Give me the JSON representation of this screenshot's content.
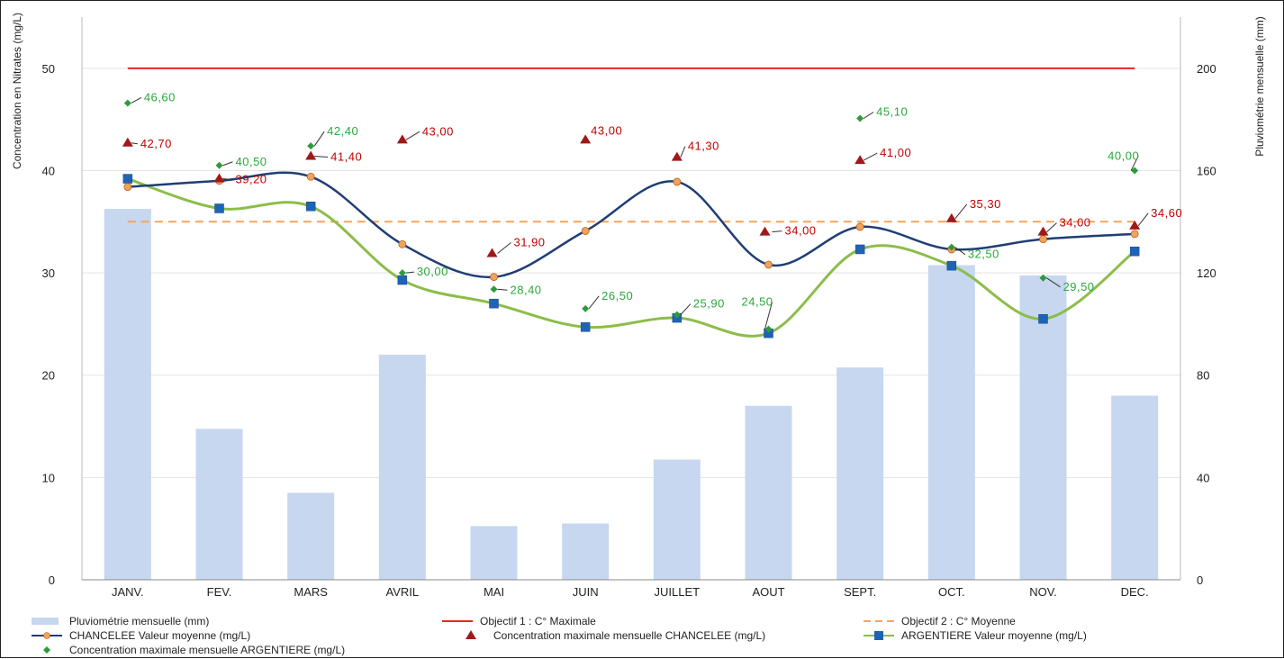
{
  "chart_data": {
    "type": "bar",
    "categories": [
      "JANV.",
      "FEV.",
      "MARS",
      "AVRIL",
      "MAI",
      "JUIN",
      "JUILLET",
      "AOUT",
      "SEPT.",
      "OCT.",
      "NOV.",
      "DEC."
    ],
    "ylabel": "Concentration en Nitrates (mg/L)",
    "y2label": "Pluviométrie mensuelle (mm)",
    "ylim": [
      0,
      55
    ],
    "y2lim": [
      0,
      220
    ],
    "yticks": [
      0,
      10,
      20,
      30,
      40,
      50
    ],
    "y2ticks": [
      0,
      40,
      80,
      120,
      160,
      200
    ],
    "grid": true,
    "legend_position": "bottom",
    "series": [
      {
        "key": "rain",
        "name": "Pluviométrie mensuelle (mm)",
        "kind": "bar",
        "axis": "right",
        "color": "#c6d7ef",
        "values": [
          145,
          59,
          34,
          88,
          21,
          22,
          47,
          68,
          83,
          123,
          119,
          72
        ]
      },
      {
        "key": "obj1",
        "name": "Objectif 1 : C° Maximale",
        "kind": "line",
        "axis": "left",
        "color": "#e8261f",
        "values": [
          50,
          50,
          50,
          50,
          50,
          50,
          50,
          50,
          50,
          50,
          50,
          50
        ]
      },
      {
        "key": "obj2",
        "name": "Objectif 2 : C° Moyenne",
        "kind": "dashed-line",
        "axis": "left",
        "color": "#f4a460",
        "values": [
          35,
          35,
          35,
          35,
          35,
          35,
          35,
          35,
          35,
          35,
          35,
          35
        ]
      },
      {
        "key": "chanc_mean",
        "name": "CHANCELEE Valeur moyenne (mg/L)",
        "kind": "smooth-line",
        "axis": "left",
        "color": "#1f3e74",
        "marker_color": "#f2a25c",
        "values": [
          38.4,
          39.0,
          39.4,
          32.8,
          29.6,
          34.1,
          38.9,
          30.8,
          34.5,
          32.3,
          33.3,
          33.8
        ]
      },
      {
        "key": "chanc_max",
        "name": "Concentration maximale mensuelle CHANCELEE (mg/L)",
        "kind": "scatter",
        "axis": "left",
        "color": "#a01818",
        "values": [
          42.7,
          39.2,
          41.4,
          43.0,
          31.9,
          43.0,
          41.3,
          34.0,
          41.0,
          35.3,
          34.0,
          34.6
        ],
        "labels": [
          "42,70",
          "39,20",
          "41,40",
          "43,00",
          "31,90",
          "43,00",
          "41,30",
          "34,00",
          "41,00",
          "35,30",
          "34,00",
          "34,60"
        ]
      },
      {
        "key": "arg_mean",
        "name": "ARGENTIERE Valeur moyenne (mg/L)",
        "kind": "smooth-line",
        "axis": "left",
        "color": "#8cbd4a",
        "marker_color": "#1f63b5",
        "values": [
          39.2,
          36.3,
          36.5,
          29.3,
          27.0,
          24.7,
          25.6,
          24.1,
          32.3,
          30.7,
          25.5,
          32.1
        ]
      },
      {
        "key": "arg_max",
        "name": "Concentration maximale mensuelle ARGENTIERE (mg/L)",
        "kind": "scatter",
        "axis": "left",
        "color": "#2e9b3a",
        "values": [
          46.6,
          40.5,
          42.4,
          30.0,
          28.4,
          26.5,
          25.9,
          24.5,
          45.1,
          32.5,
          29.5,
          40.0
        ],
        "labels": [
          "46,60",
          "40,50",
          "42,40",
          "30,00",
          "28,40",
          "26,50",
          "25,90",
          "24,50",
          "45,10",
          "32,50",
          "29,50",
          "40,00"
        ]
      }
    ]
  }
}
